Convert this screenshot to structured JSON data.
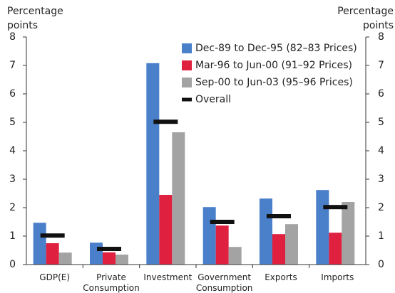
{
  "chart_data": {
    "type": "bar",
    "y_label": "Percentage points",
    "y2_label": "Percentage points",
    "categories": [
      "GDP(E)",
      "Private Consumption",
      "Investment",
      "Government Consumption",
      "Exports",
      "Imports"
    ],
    "series": [
      {
        "name": "Dec-89 to Dec-95 (82–83 Prices)",
        "color": "#4a7fca",
        "values": [
          1.47,
          0.77,
          7.08,
          2.02,
          2.32,
          2.62
        ]
      },
      {
        "name": "Mar-96 to Jun-00 (91–92 Prices)",
        "color": "#e0203f",
        "values": [
          0.75,
          0.43,
          2.45,
          1.37,
          1.07,
          1.12
        ]
      },
      {
        "name": "Sep-00 to Jun-03 (95–96 Prices)",
        "color": "#a3a3a3",
        "values": [
          0.42,
          0.35,
          4.65,
          0.62,
          1.42,
          2.2
        ]
      },
      {
        "name": "Overall",
        "color": "#111111",
        "marker": "dash",
        "values": [
          1.02,
          0.55,
          5.02,
          1.5,
          1.7,
          2.02
        ]
      }
    ],
    "ylim": [
      0,
      8
    ],
    "yticks": [
      0,
      1,
      2,
      3,
      4,
      5,
      6,
      7,
      8
    ],
    "y2lim": [
      0,
      8
    ],
    "y2ticks": [
      0,
      1,
      2,
      3,
      4,
      5,
      6,
      7,
      8
    ],
    "legend": "top-right"
  }
}
